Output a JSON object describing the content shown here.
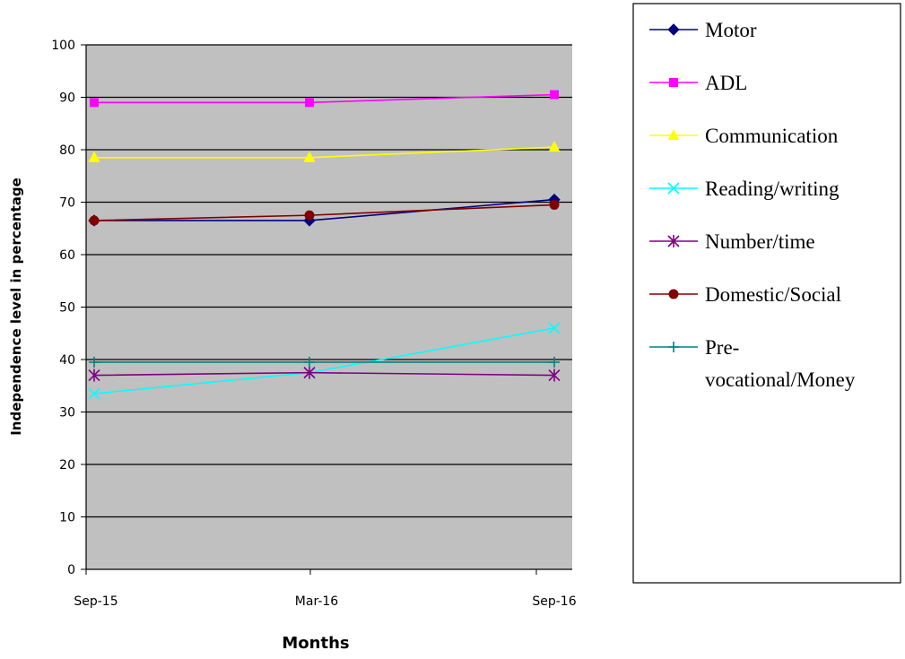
{
  "chart_data": {
    "type": "line",
    "title": "",
    "xlabel": "Months",
    "ylabel": "Independence level in percentage",
    "categories": [
      "Sep-15",
      "Mar-16",
      "Sep-16"
    ],
    "ylim": [
      0,
      100
    ],
    "yticks": [
      0,
      10,
      20,
      30,
      40,
      50,
      60,
      70,
      80,
      90,
      100
    ],
    "grid": true,
    "legend_position": "right",
    "plot_background": "#c0c0c0",
    "series": [
      {
        "name": "Motor",
        "values": [
          66.5,
          66.5,
          70.5
        ],
        "color": "#000080",
        "marker": "diamond"
      },
      {
        "name": "ADL",
        "values": [
          89,
          89,
          90.5
        ],
        "color": "#ff00ff",
        "marker": "square"
      },
      {
        "name": "Communication",
        "values": [
          78.5,
          78.5,
          80.5
        ],
        "color": "#ffff00",
        "marker": "triangle"
      },
      {
        "name": "Reading/writing",
        "values": [
          33.5,
          37.5,
          46
        ],
        "color": "#00ffff",
        "marker": "x"
      },
      {
        "name": "Number/time",
        "values": [
          37,
          37.5,
          37
        ],
        "color": "#800080",
        "marker": "star"
      },
      {
        "name": "Domestic/Social",
        "values": [
          66.5,
          67.5,
          69.5
        ],
        "color": "#800000",
        "marker": "circle"
      },
      {
        "name": "Pre-vocational/Money",
        "legend_lines": [
          "Pre-",
          "vocational/Money"
        ],
        "values": [
          39.5,
          39.5,
          39.5
        ],
        "color": "#008080",
        "marker": "plus"
      }
    ]
  }
}
